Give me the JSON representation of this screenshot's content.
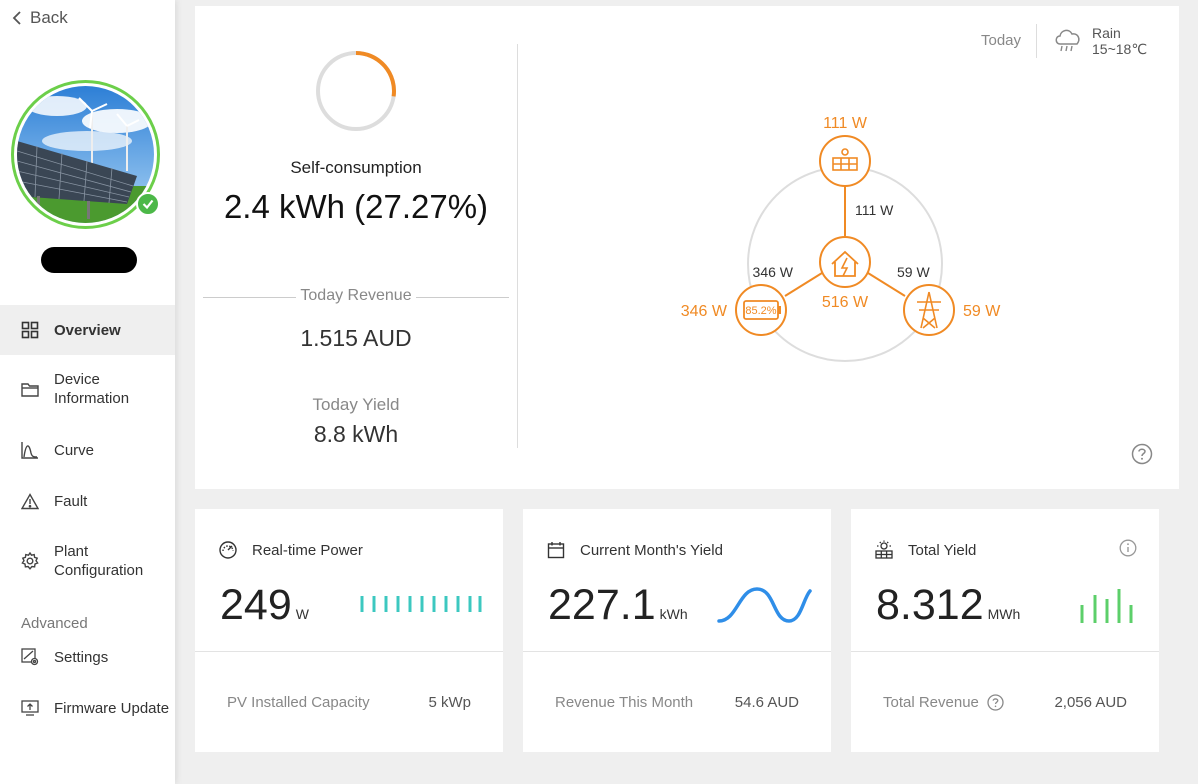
{
  "nav": {
    "back_label": "Back",
    "items": [
      {
        "label": "Overview",
        "icon": "grid-icon",
        "active": true
      },
      {
        "label": "Device\nInformation",
        "icon": "folder-icon"
      },
      {
        "label": "Curve",
        "icon": "curve-icon"
      },
      {
        "label": "Fault",
        "icon": "warning-icon"
      },
      {
        "label": "Plant\nConfiguration",
        "icon": "gear-icon"
      }
    ],
    "advanced_label": "Advanced",
    "advanced_items": [
      {
        "label": "Settings",
        "icon": "settings-icon"
      },
      {
        "label": "Firmware Update",
        "icon": "upload-icon"
      }
    ]
  },
  "overview": {
    "self_consumption_label": "Self-consumption",
    "self_consumption_value": "2.4 kWh (27.27%)",
    "self_consumption_ratio": 0.2727,
    "revenue_label": "Today Revenue",
    "revenue_value": "1.515 AUD",
    "yield_label": "Today Yield",
    "yield_value": "8.8 kWh"
  },
  "weather": {
    "day": "Today",
    "condition": "Rain",
    "temp": "15~18℃"
  },
  "energy_flow": {
    "pv_power": "111 W",
    "pv_to_home": "111 W",
    "battery_to_home": "346 W",
    "grid_to_home": "59 W",
    "home_load": "516 W",
    "battery_power": "346 W",
    "battery_soc": "85.2%",
    "grid_power": "59 W",
    "accent": "#f08a24"
  },
  "cards": {
    "realtime": {
      "title": "Real-time Power",
      "value": "249",
      "unit": "W",
      "foot_label": "PV Installed Capacity",
      "foot_value": "5 kWp",
      "color": "#3cc8c0"
    },
    "month": {
      "title": "Current Month's Yield",
      "value": "227.1",
      "unit": "kWh",
      "foot_label": "Revenue This Month",
      "foot_value": "54.6 AUD",
      "color": "#2f8ee8"
    },
    "total": {
      "title": "Total Yield",
      "value": "8.312",
      "unit": "MWh",
      "foot_label": "Total Revenue",
      "foot_value": "2,056 AUD",
      "color": "#5ccf6a"
    }
  }
}
